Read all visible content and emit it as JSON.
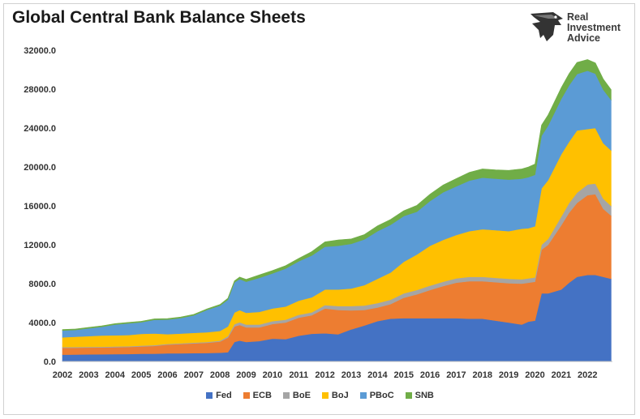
{
  "title": "Global Central Bank Balance Sheets",
  "logo": {
    "lines": [
      "Real",
      "Investment",
      "Advice"
    ]
  },
  "chart_data": {
    "type": "area",
    "stacked": true,
    "title": "Global Central Bank Balance Sheets",
    "xlabel": "",
    "ylabel": "",
    "ylim": [
      0,
      32000
    ],
    "yticks": [
      "0.0",
      "4000.0",
      "8000.0",
      "12000.0",
      "16000.0",
      "20000.0",
      "24000.0",
      "28000.0",
      "32000.0"
    ],
    "xticks": [
      "2002",
      "2003",
      "2004",
      "2005",
      "2006",
      "2007",
      "2008",
      "2009",
      "2010",
      "2011",
      "2012",
      "2013",
      "2014",
      "2015",
      "2016",
      "2017",
      "2018",
      "2019",
      "2020",
      "2021",
      "2022"
    ],
    "grid": false,
    "legend_position": "bottom",
    "x": [
      2002.0,
      2002.5,
      2003.0,
      2003.5,
      2004.0,
      2004.5,
      2005.0,
      2005.5,
      2006.0,
      2006.5,
      2007.0,
      2007.5,
      2008.0,
      2008.3,
      2008.55,
      2008.75,
      2009.0,
      2009.5,
      2010.0,
      2010.5,
      2011.0,
      2011.5,
      2012.0,
      2012.5,
      2013.0,
      2013.5,
      2014.0,
      2014.5,
      2015.0,
      2015.5,
      2016.0,
      2016.5,
      2017.0,
      2017.5,
      2018.0,
      2018.5,
      2019.0,
      2019.5,
      2019.75,
      2020.0,
      2020.25,
      2020.5,
      2021.0,
      2021.3,
      2021.6,
      2022.0,
      2022.3,
      2022.6,
      2022.9
    ],
    "series": [
      {
        "name": "Fed",
        "color": "#4472C4",
        "values": [
          700,
          710,
          730,
          740,
          760,
          770,
          790,
          800,
          830,
          840,
          860,
          870,
          900,
          950,
          2000,
          2150,
          2000,
          2100,
          2350,
          2300,
          2650,
          2850,
          2900,
          2800,
          3300,
          3700,
          4150,
          4400,
          4450,
          4450,
          4450,
          4450,
          4450,
          4400,
          4400,
          4200,
          4000,
          3800,
          4100,
          4200,
          7000,
          7000,
          7400,
          8100,
          8700,
          8900,
          8900,
          8700,
          8500
        ]
      },
      {
        "name": "ECB",
        "color": "#ED7D31",
        "values": [
          700,
          700,
          700,
          700,
          700,
          720,
          760,
          800,
          900,
          950,
          1000,
          1050,
          1150,
          1500,
          1600,
          1600,
          1500,
          1400,
          1500,
          1700,
          1850,
          1900,
          2550,
          2500,
          1950,
          1600,
          1400,
          1500,
          2100,
          2450,
          2900,
          3300,
          3650,
          3850,
          3850,
          3950,
          4050,
          4200,
          4000,
          4000,
          4500,
          5000,
          6600,
          7200,
          7600,
          8200,
          8300,
          7000,
          6500
        ]
      },
      {
        "name": "BoE",
        "color": "#A5A5A5",
        "values": [
          80,
          80,
          80,
          80,
          80,
          80,
          80,
          80,
          80,
          80,
          80,
          80,
          90,
          150,
          230,
          280,
          300,
          300,
          300,
          300,
          300,
          300,
          350,
          400,
          450,
          450,
          450,
          450,
          450,
          450,
          450,
          450,
          450,
          450,
          450,
          450,
          450,
          450,
          450,
          450,
          500,
          600,
          900,
          1000,
          1050,
          1100,
          1100,
          1050,
          1000
        ]
      },
      {
        "name": "BoJ",
        "color": "#FFC000",
        "values": [
          1000,
          1050,
          1100,
          1150,
          1150,
          1150,
          1200,
          1200,
          1000,
          1000,
          1000,
          1000,
          1000,
          1000,
          1200,
          1250,
          1200,
          1300,
          1300,
          1350,
          1450,
          1550,
          1600,
          1700,
          1800,
          2100,
          2500,
          2800,
          3250,
          3650,
          4100,
          4300,
          4450,
          4700,
          4900,
          4900,
          4900,
          5200,
          5150,
          5250,
          5800,
          6050,
          6400,
          6300,
          6400,
          5700,
          5700,
          5700,
          5700
        ]
      },
      {
        "name": "PBoC",
        "color": "#5B9BD5",
        "values": [
          700,
          700,
          800,
          900,
          1100,
          1200,
          1200,
          1400,
          1500,
          1600,
          1800,
          2300,
          2600,
          2750,
          3100,
          3200,
          3200,
          3500,
          3600,
          3900,
          4050,
          4300,
          4400,
          4500,
          4600,
          4700,
          4900,
          4900,
          4700,
          4400,
          4600,
          4900,
          5000,
          5200,
          5300,
          5300,
          5300,
          5150,
          5250,
          5300,
          5400,
          5600,
          5700,
          5800,
          5800,
          6000,
          5600,
          5500,
          5200
        ]
      },
      {
        "name": "SNB",
        "color": "#70AD47",
        "values": [
          100,
          100,
          100,
          100,
          100,
          100,
          100,
          100,
          100,
          100,
          100,
          100,
          120,
          150,
          150,
          200,
          250,
          300,
          300,
          300,
          300,
          400,
          500,
          600,
          500,
          500,
          550,
          550,
          550,
          650,
          700,
          750,
          800,
          850,
          900,
          900,
          950,
          1000,
          1050,
          1100,
          1100,
          1100,
          1150,
          1200,
          1200,
          1150,
          1100,
          1100,
          1050
        ]
      }
    ]
  }
}
